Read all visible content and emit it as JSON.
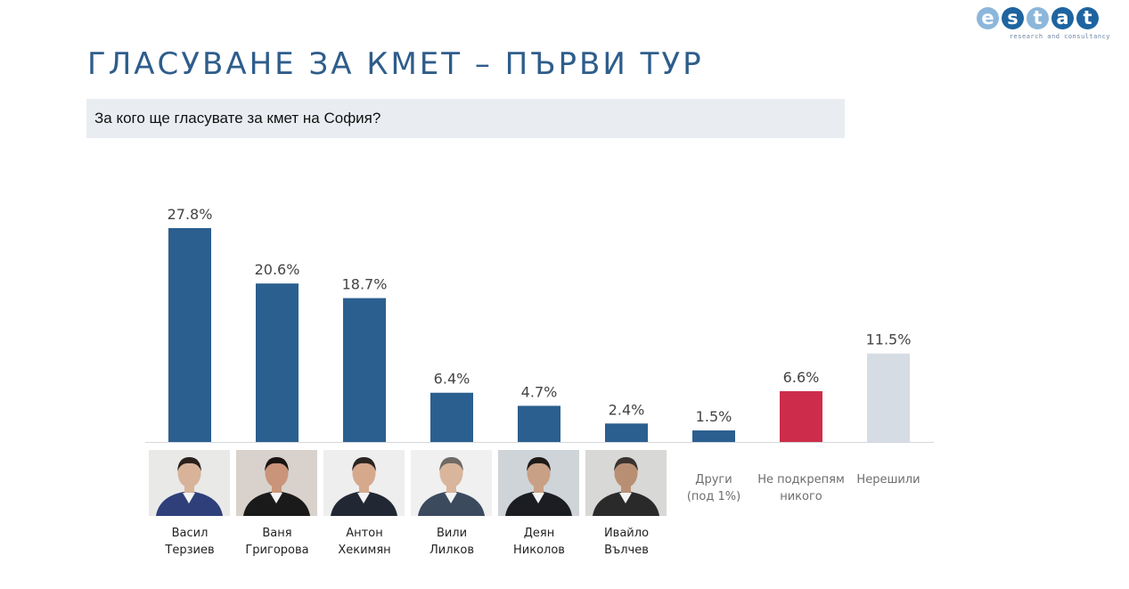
{
  "logo": {
    "letters": [
      "e",
      "s",
      "t",
      "a",
      "t"
    ],
    "letter_colors": [
      "#8cb7db",
      "#1e64a0",
      "#8cb7db",
      "#1e64a0",
      "#1e64a0"
    ],
    "tagline": "research and consultancy"
  },
  "title": "ГЛАСУВАНЕ ЗА КМЕТ – ПЪРВИ ТУР",
  "question": "За кого ще гласувате за кмет на София?",
  "chart_data": {
    "type": "bar",
    "categories": [
      [
        "Васил",
        "Терзиев"
      ],
      [
        "Ваня",
        "Григорова"
      ],
      [
        "Антон",
        "Хекимян"
      ],
      [
        "Вили",
        "Лилков"
      ],
      [
        "Деян",
        "Николов"
      ],
      [
        "Ивайло",
        "Вълчев"
      ],
      [
        "Други",
        "(под 1%)"
      ],
      [
        "Не подкрепям",
        "никого"
      ],
      [
        "Нерешили"
      ]
    ],
    "values": [
      27.8,
      20.6,
      18.7,
      6.4,
      4.7,
      2.4,
      1.5,
      6.6,
      11.5
    ],
    "value_labels": [
      "27.8%",
      "20.6%",
      "18.7%",
      "6.4%",
      "4.7%",
      "2.4%",
      "1.5%",
      "6.6%",
      "11.5%"
    ],
    "colors": [
      "#2b5f8f",
      "#2b5f8f",
      "#2b5f8f",
      "#2b5f8f",
      "#2b5f8f",
      "#2b5f8f",
      "#2b5f8f",
      "#cd2d4a",
      "#d6dce3"
    ],
    "photo_candidates": [
      0,
      1,
      2,
      3,
      4,
      5
    ],
    "unit": "%",
    "ylim": [
      0,
      30
    ],
    "grid": false,
    "title": "",
    "xlabel": "",
    "ylabel": ""
  }
}
